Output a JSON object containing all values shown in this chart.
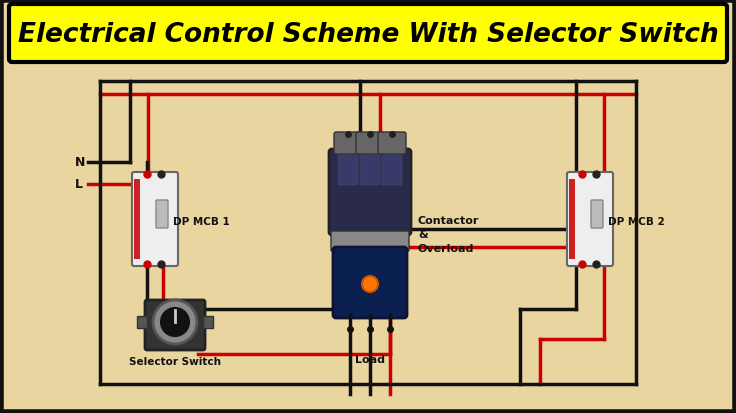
{
  "title": "Electrical Control Scheme With Selector Switch",
  "title_fontsize": 19,
  "title_color": "#000000",
  "title_bg": "#FFFF00",
  "bg_color": "#E8D5A0",
  "outer_bg": "#1a1a1a",
  "wire_black": "#111111",
  "wire_red": "#CC0000",
  "label_dp1": "DP MCB 1",
  "label_dp2": "DP MCB 2",
  "label_contactor": "Contactor\n&\nOverload",
  "label_load": "Load",
  "label_selector": "Selector Switch",
  "label_N": "N",
  "label_L": "L",
  "border_color": "#111111",
  "fig_w": 7.36,
  "fig_h": 4.14,
  "dpi": 100
}
